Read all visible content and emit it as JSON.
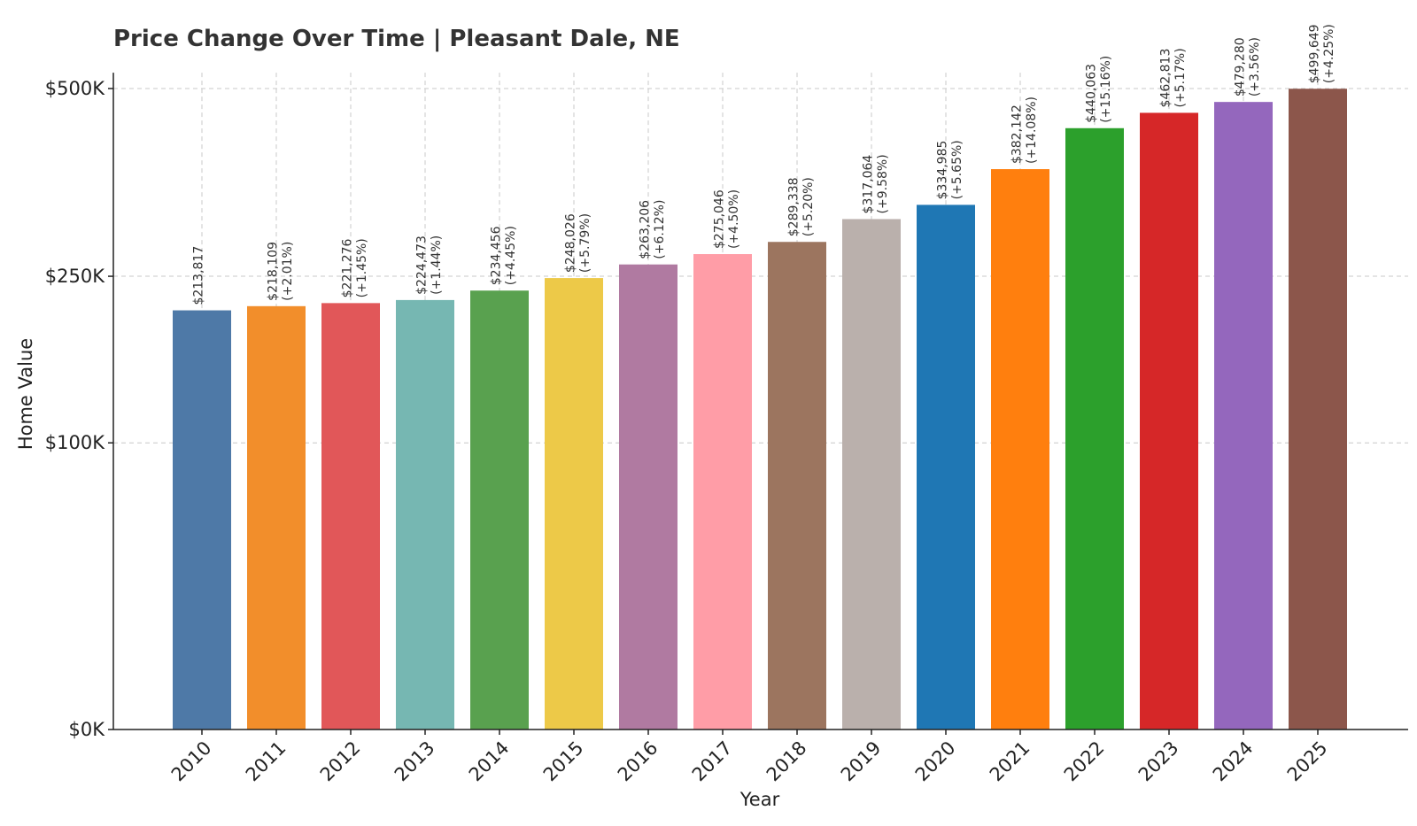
{
  "chart_data": {
    "type": "bar",
    "title": "Price Change Over Time | Pleasant Dale, NE",
    "xlabel": "Year",
    "ylabel": "Home Value",
    "y_scale": "sqrt",
    "ylim": [
      0,
      525000
    ],
    "grid": true,
    "y_ticks": [
      {
        "value": 0,
        "label": "$0K"
      },
      {
        "value": 100000,
        "label": "$100K"
      },
      {
        "value": 250000,
        "label": "$250K"
      },
      {
        "value": 500000,
        "label": "$500K"
      }
    ],
    "categories": [
      "2010",
      "2011",
      "2012",
      "2013",
      "2014",
      "2015",
      "2016",
      "2017",
      "2018",
      "2019",
      "2020",
      "2021",
      "2022",
      "2023",
      "2024",
      "2025"
    ],
    "values": [
      213817,
      218109,
      221276,
      224473,
      234456,
      248026,
      263206,
      275046,
      289338,
      317064,
      334985,
      382142,
      440063,
      462813,
      479280,
      499649
    ],
    "value_labels": [
      "$213,817",
      "$218,109",
      "$221,276",
      "$224,473",
      "$234,456",
      "$248,026",
      "$263,206",
      "$275,046",
      "$289,338",
      "$317,064",
      "$334,985",
      "$382,142",
      "$440,063",
      "$462,813",
      "$479,280",
      "$499,649"
    ],
    "change_labels": [
      "",
      "(+2.01%)",
      "(+1.45%)",
      "(+1.44%)",
      "(+4.45%)",
      "(+5.79%)",
      "(+6.12%)",
      "(+4.50%)",
      "(+5.20%)",
      "(+9.58%)",
      "(+5.65%)",
      "(+14.08%)",
      "(+15.16%)",
      "(+5.17%)",
      "(+3.56%)",
      "(+4.25%)"
    ],
    "colors": [
      "#4e79a7",
      "#f28e2b",
      "#e15759",
      "#76b7b2",
      "#59a14f",
      "#edc948",
      "#b07aa1",
      "#ff9da7",
      "#9c755f",
      "#bab0ac",
      "#1f77b4",
      "#ff7f0e",
      "#2ca02c",
      "#d62728",
      "#9467bd",
      "#8c564b"
    ]
  }
}
